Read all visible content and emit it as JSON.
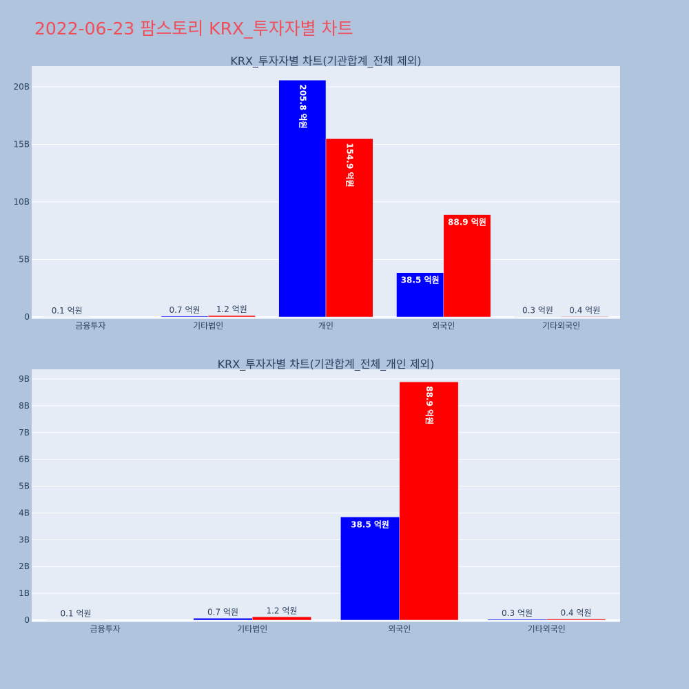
{
  "title": "2022-06-23 팜스토리 KRX_투자자별 차트",
  "colors": {
    "buy": "#0000ff",
    "sell": "#ff0000",
    "plot_bg": "#e5ecf6",
    "page_bg": "#b0c4de",
    "title": "#ef4f5b"
  },
  "chart_data": [
    {
      "type": "bar",
      "title": "KRX_투자자별 차트(기관합계_전체 제외)",
      "categories": [
        "금융투자",
        "기타법인",
        "개인",
        "외국인",
        "기타외국인"
      ],
      "yticks": [
        "0",
        "5B",
        "10B",
        "15B",
        "20B"
      ],
      "ylim": [
        0,
        21.8
      ],
      "y_unit": "B",
      "series": [
        {
          "values": [
            0.01,
            0.07,
            20.58,
            3.85,
            0.03
          ],
          "labels": [
            "0.1 억원",
            "0.7 억원",
            "205.8 억원",
            "38.5 억원",
            "0.3 억원"
          ]
        },
        {
          "values": [
            0,
            0.12,
            15.49,
            8.89,
            0.04
          ],
          "labels": [
            "",
            "1.2 억원",
            "154.9 억원",
            "88.9 억원",
            "0.4 억원"
          ]
        }
      ]
    },
    {
      "type": "bar",
      "title": "KRX_투자자별 차트(기관합계_전체_개인 제외)",
      "categories": [
        "금융투자",
        "기타법인",
        "외국인",
        "기타외국인"
      ],
      "yticks": [
        "0",
        "1B",
        "2B",
        "3B",
        "4B",
        "5B",
        "6B",
        "7B",
        "8B",
        "9B"
      ],
      "ylim": [
        0,
        9.36
      ],
      "y_unit": "B",
      "series": [
        {
          "values": [
            0.01,
            0.07,
            3.85,
            0.03
          ],
          "labels": [
            "0.1 억원",
            "0.7 억원",
            "38.5 억원",
            "0.3 억원"
          ]
        },
        {
          "values": [
            0,
            0.12,
            8.89,
            0.04
          ],
          "labels": [
            "",
            "1.2 억원",
            "88.9 억원",
            "0.4 억원"
          ]
        }
      ]
    }
  ]
}
